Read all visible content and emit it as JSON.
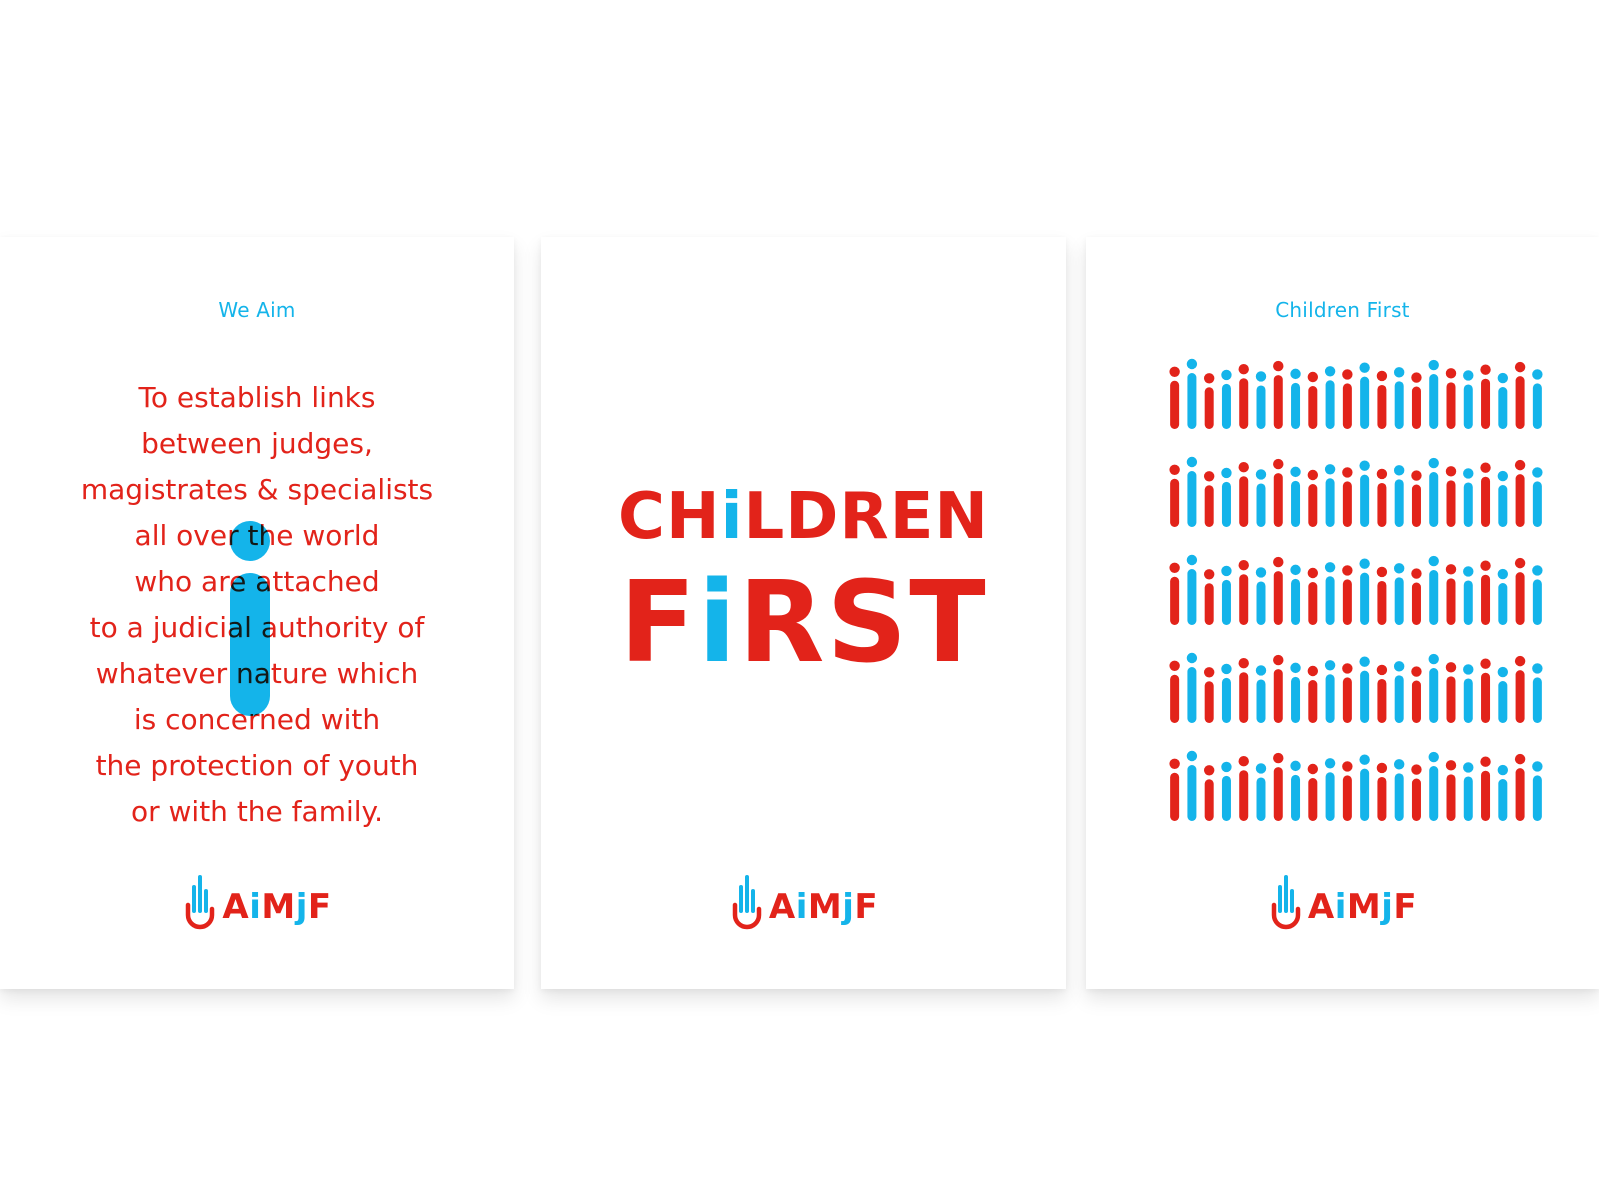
{
  "colors": {
    "red": "#E2231A",
    "blue": "#14B4EA",
    "background": "#FFFFFF"
  },
  "card_aim": {
    "eyebrow": "We Aim",
    "mission_lines": [
      "To establish links",
      "between judges,",
      "magistrates & specialists",
      "all over the world",
      "who are attached",
      "to a judicial authority of",
      "whatever nature which",
      "is concerned with",
      "the protection of youth",
      "or with the family."
    ]
  },
  "card_title": {
    "line1": {
      "pre": "CH",
      "accent": "i",
      "post": "LDREN"
    },
    "line2": {
      "pre": "F",
      "accent": "i",
      "post": "RST"
    }
  },
  "card_pattern": {
    "eyebrow": "Children First",
    "rows": 5,
    "figure_colors": [
      "red",
      "blue",
      "red",
      "blue",
      "red",
      "blue",
      "red",
      "blue",
      "red",
      "blue",
      "red",
      "blue",
      "red",
      "blue",
      "red",
      "blue",
      "red",
      "blue",
      "red",
      "blue",
      "red",
      "blue",
      "red",
      "blue",
      "red",
      "blue",
      "red",
      "blue",
      "red",
      "blue",
      "red",
      "blue",
      "red",
      "blue",
      "red",
      "blue",
      "red",
      "blue",
      "red",
      "blue",
      "red",
      "blue",
      "red",
      "blue",
      "red",
      "blue",
      "red",
      "blue",
      "red",
      "blue"
    ],
    "figure_heights": [
      0.7,
      1.0,
      0.45,
      0.58,
      0.8,
      0.52,
      0.92,
      0.62,
      0.5,
      0.72,
      0.6,
      0.86,
      0.54,
      0.68,
      0.48,
      0.96,
      0.64,
      0.56,
      0.78,
      0.46,
      0.88,
      0.6,
      0.52,
      0.74,
      0.98,
      0.5,
      0.66,
      0.58,
      0.84,
      0.48,
      0.7,
      0.62,
      0.94,
      0.54,
      0.76,
      0.5
    ]
  },
  "logo": {
    "pre": "A",
    "accent": "i",
    "mid": "M",
    "accent2": "j",
    "post": "F",
    "icon": "hand-icon"
  }
}
